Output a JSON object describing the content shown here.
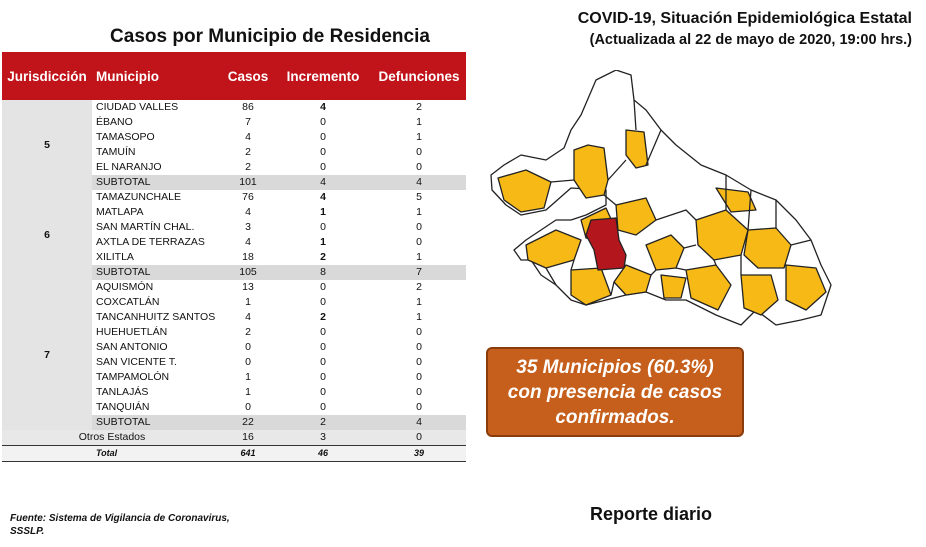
{
  "table_title": "Casos por Municipio  de Residencia",
  "header": {
    "title": "COVID-19, Situación Epidemiológica Estatal",
    "subtitle": "(Actualizada al 22 de mayo de 2020, 19:00 hrs.)"
  },
  "columns": [
    "Jurisdicción",
    "Municipio",
    "Casos",
    "Incremento",
    "Defunciones"
  ],
  "groups": [
    {
      "jurisdiccion": "5",
      "rows": [
        {
          "municipio": "CIUDAD VALLES",
          "casos": "86",
          "incremento": "4",
          "defunciones": "2",
          "inc_bold": true
        },
        {
          "municipio": "ÉBANO",
          "casos": "7",
          "incremento": "0",
          "defunciones": "1",
          "inc_bold": false
        },
        {
          "municipio": "TAMASOPO",
          "casos": "4",
          "incremento": "0",
          "defunciones": "1",
          "inc_bold": false
        },
        {
          "municipio": "TAMUÍN",
          "casos": "2",
          "incremento": "0",
          "defunciones": "0",
          "inc_bold": false
        },
        {
          "municipio": "EL NARANJO",
          "casos": "2",
          "incremento": "0",
          "defunciones": "0",
          "inc_bold": false
        }
      ],
      "subtotal": {
        "label": "SUBTOTAL",
        "casos": "101",
        "incremento": "4",
        "defunciones": "4"
      }
    },
    {
      "jurisdiccion": "6",
      "rows": [
        {
          "municipio": "TAMAZUNCHALE",
          "casos": "76",
          "incremento": "4",
          "defunciones": "5",
          "inc_bold": true
        },
        {
          "municipio": "MATLAPA",
          "casos": "4",
          "incremento": "1",
          "defunciones": "1",
          "inc_bold": true
        },
        {
          "municipio": "SAN MARTÍN CHAL.",
          "casos": "3",
          "incremento": "0",
          "defunciones": "0",
          "inc_bold": false
        },
        {
          "municipio": "AXTLA DE TERRAZAS",
          "casos": "4",
          "incremento": "1",
          "defunciones": "0",
          "inc_bold": true
        },
        {
          "municipio": "XILITLA",
          "casos": "18",
          "incremento": "2",
          "defunciones": "1",
          "inc_bold": true
        }
      ],
      "subtotal": {
        "label": "SUBTOTAL",
        "casos": "105",
        "incremento": "8",
        "defunciones": "7"
      }
    },
    {
      "jurisdiccion": "7",
      "rows": [
        {
          "municipio": "AQUISMÓN",
          "casos": "13",
          "incremento": "0",
          "defunciones": "2",
          "inc_bold": false
        },
        {
          "municipio": "COXCATLÁN",
          "casos": "1",
          "incremento": "0",
          "defunciones": "1",
          "inc_bold": false
        },
        {
          "municipio": "TANCANHUITZ SANTOS",
          "casos": "4",
          "incremento": "2",
          "defunciones": "1",
          "inc_bold": true
        },
        {
          "municipio": "HUEHUETLÁN",
          "casos": "2",
          "incremento": "0",
          "defunciones": "0",
          "inc_bold": false
        },
        {
          "municipio": "SAN ANTONIO",
          "casos": "0",
          "incremento": "0",
          "defunciones": "0",
          "inc_bold": false
        },
        {
          "municipio": "SAN VICENTE T.",
          "casos": "0",
          "incremento": "0",
          "defunciones": "0",
          "inc_bold": false
        },
        {
          "municipio": "TAMPAMOLÓN",
          "casos": "1",
          "incremento": "0",
          "defunciones": "0",
          "inc_bold": false
        },
        {
          "municipio": "TANLAJÁS",
          "casos": "1",
          "incremento": "0",
          "defunciones": "0",
          "inc_bold": false
        },
        {
          "municipio": "TANQUIÁN",
          "casos": "0",
          "incremento": "0",
          "defunciones": "0",
          "inc_bold": false
        }
      ],
      "subtotal": {
        "label": "SUBTOTAL",
        "casos": "22",
        "incremento": "2",
        "defunciones": "4"
      }
    }
  ],
  "otros": {
    "label": "Otros Estados",
    "casos": "16",
    "incremento": "3",
    "defunciones": "0"
  },
  "total": {
    "label": "Total",
    "casos": "641",
    "incremento": "46",
    "defunciones": "39"
  },
  "map_colors": {
    "cases": "#f7b916",
    "none": "#ffffff",
    "highlight": "#b3171d",
    "border": "#222222"
  },
  "callout": {
    "line1": "35 Municipios (60.3%)",
    "line2": "con presencia de casos",
    "line3": "confirmados.",
    "color": "#c65f1b"
  },
  "report_label": "Reporte diario",
  "footer": {
    "line1": "Fuente:  Sistema de Vigilancia  de Coronavirus,",
    "line2": "SSSLP."
  }
}
